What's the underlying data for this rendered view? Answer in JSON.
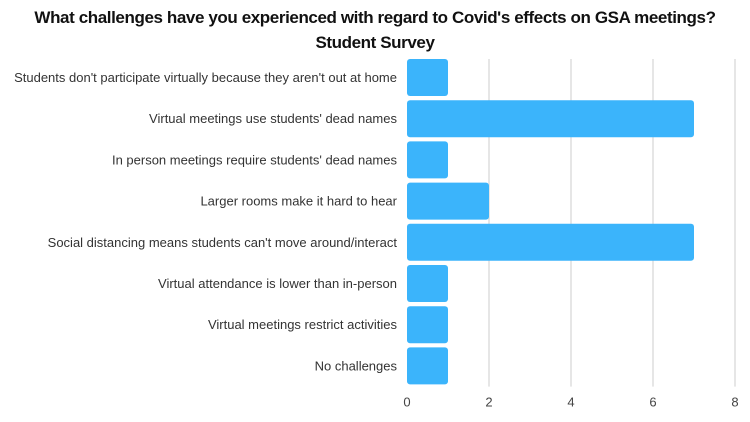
{
  "chart_data": {
    "type": "bar",
    "orientation": "horizontal",
    "title": "What challenges have you experienced with regard to Covid's effects on GSA meetings?",
    "subtitle": "Student Survey",
    "categories": [
      "Students don't participate virtually because they aren't out at home",
      "Virtual meetings use students' dead names",
      "In person meetings require students' dead names",
      "Larger rooms make it hard to hear",
      "Social distancing means students can't move around/interact",
      "Virtual attendance is lower than in-person",
      "Virtual meetings restrict activities",
      "No challenges"
    ],
    "values": [
      1,
      7,
      1,
      2,
      7,
      1,
      1,
      1
    ],
    "xlim": [
      0,
      8
    ],
    "xticks": [
      0,
      2,
      4,
      6,
      8
    ],
    "grid": true,
    "bar_color": "#3bb4fb",
    "grid_color": "#e6e6e6"
  }
}
